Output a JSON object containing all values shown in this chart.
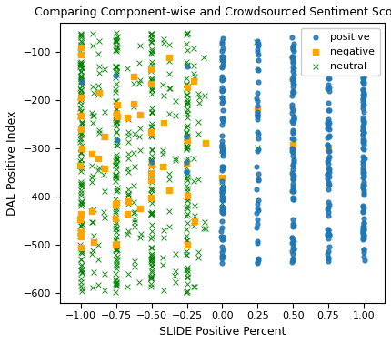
{
  "title": "Comparing Component-wise and Crowdsourced Sentiment Scores",
  "xlabel": "SLIDE Positive Percent",
  "ylabel": "DAL Positive Index",
  "xlim": [
    -1.15,
    1.15
  ],
  "ylim": [
    -620,
    -40
  ],
  "yticks": [
    -600,
    -500,
    -400,
    -300,
    -200,
    -100
  ],
  "xticks": [
    -1.0,
    -0.75,
    -0.5,
    -0.25,
    0.0,
    0.25,
    0.5,
    0.75,
    1.0
  ],
  "positive_color": "#1f77b4",
  "negative_color": "orange",
  "neutral_color": "green",
  "seed": 42,
  "figsize": [
    4.3,
    3.78
  ],
  "dpi": 100
}
